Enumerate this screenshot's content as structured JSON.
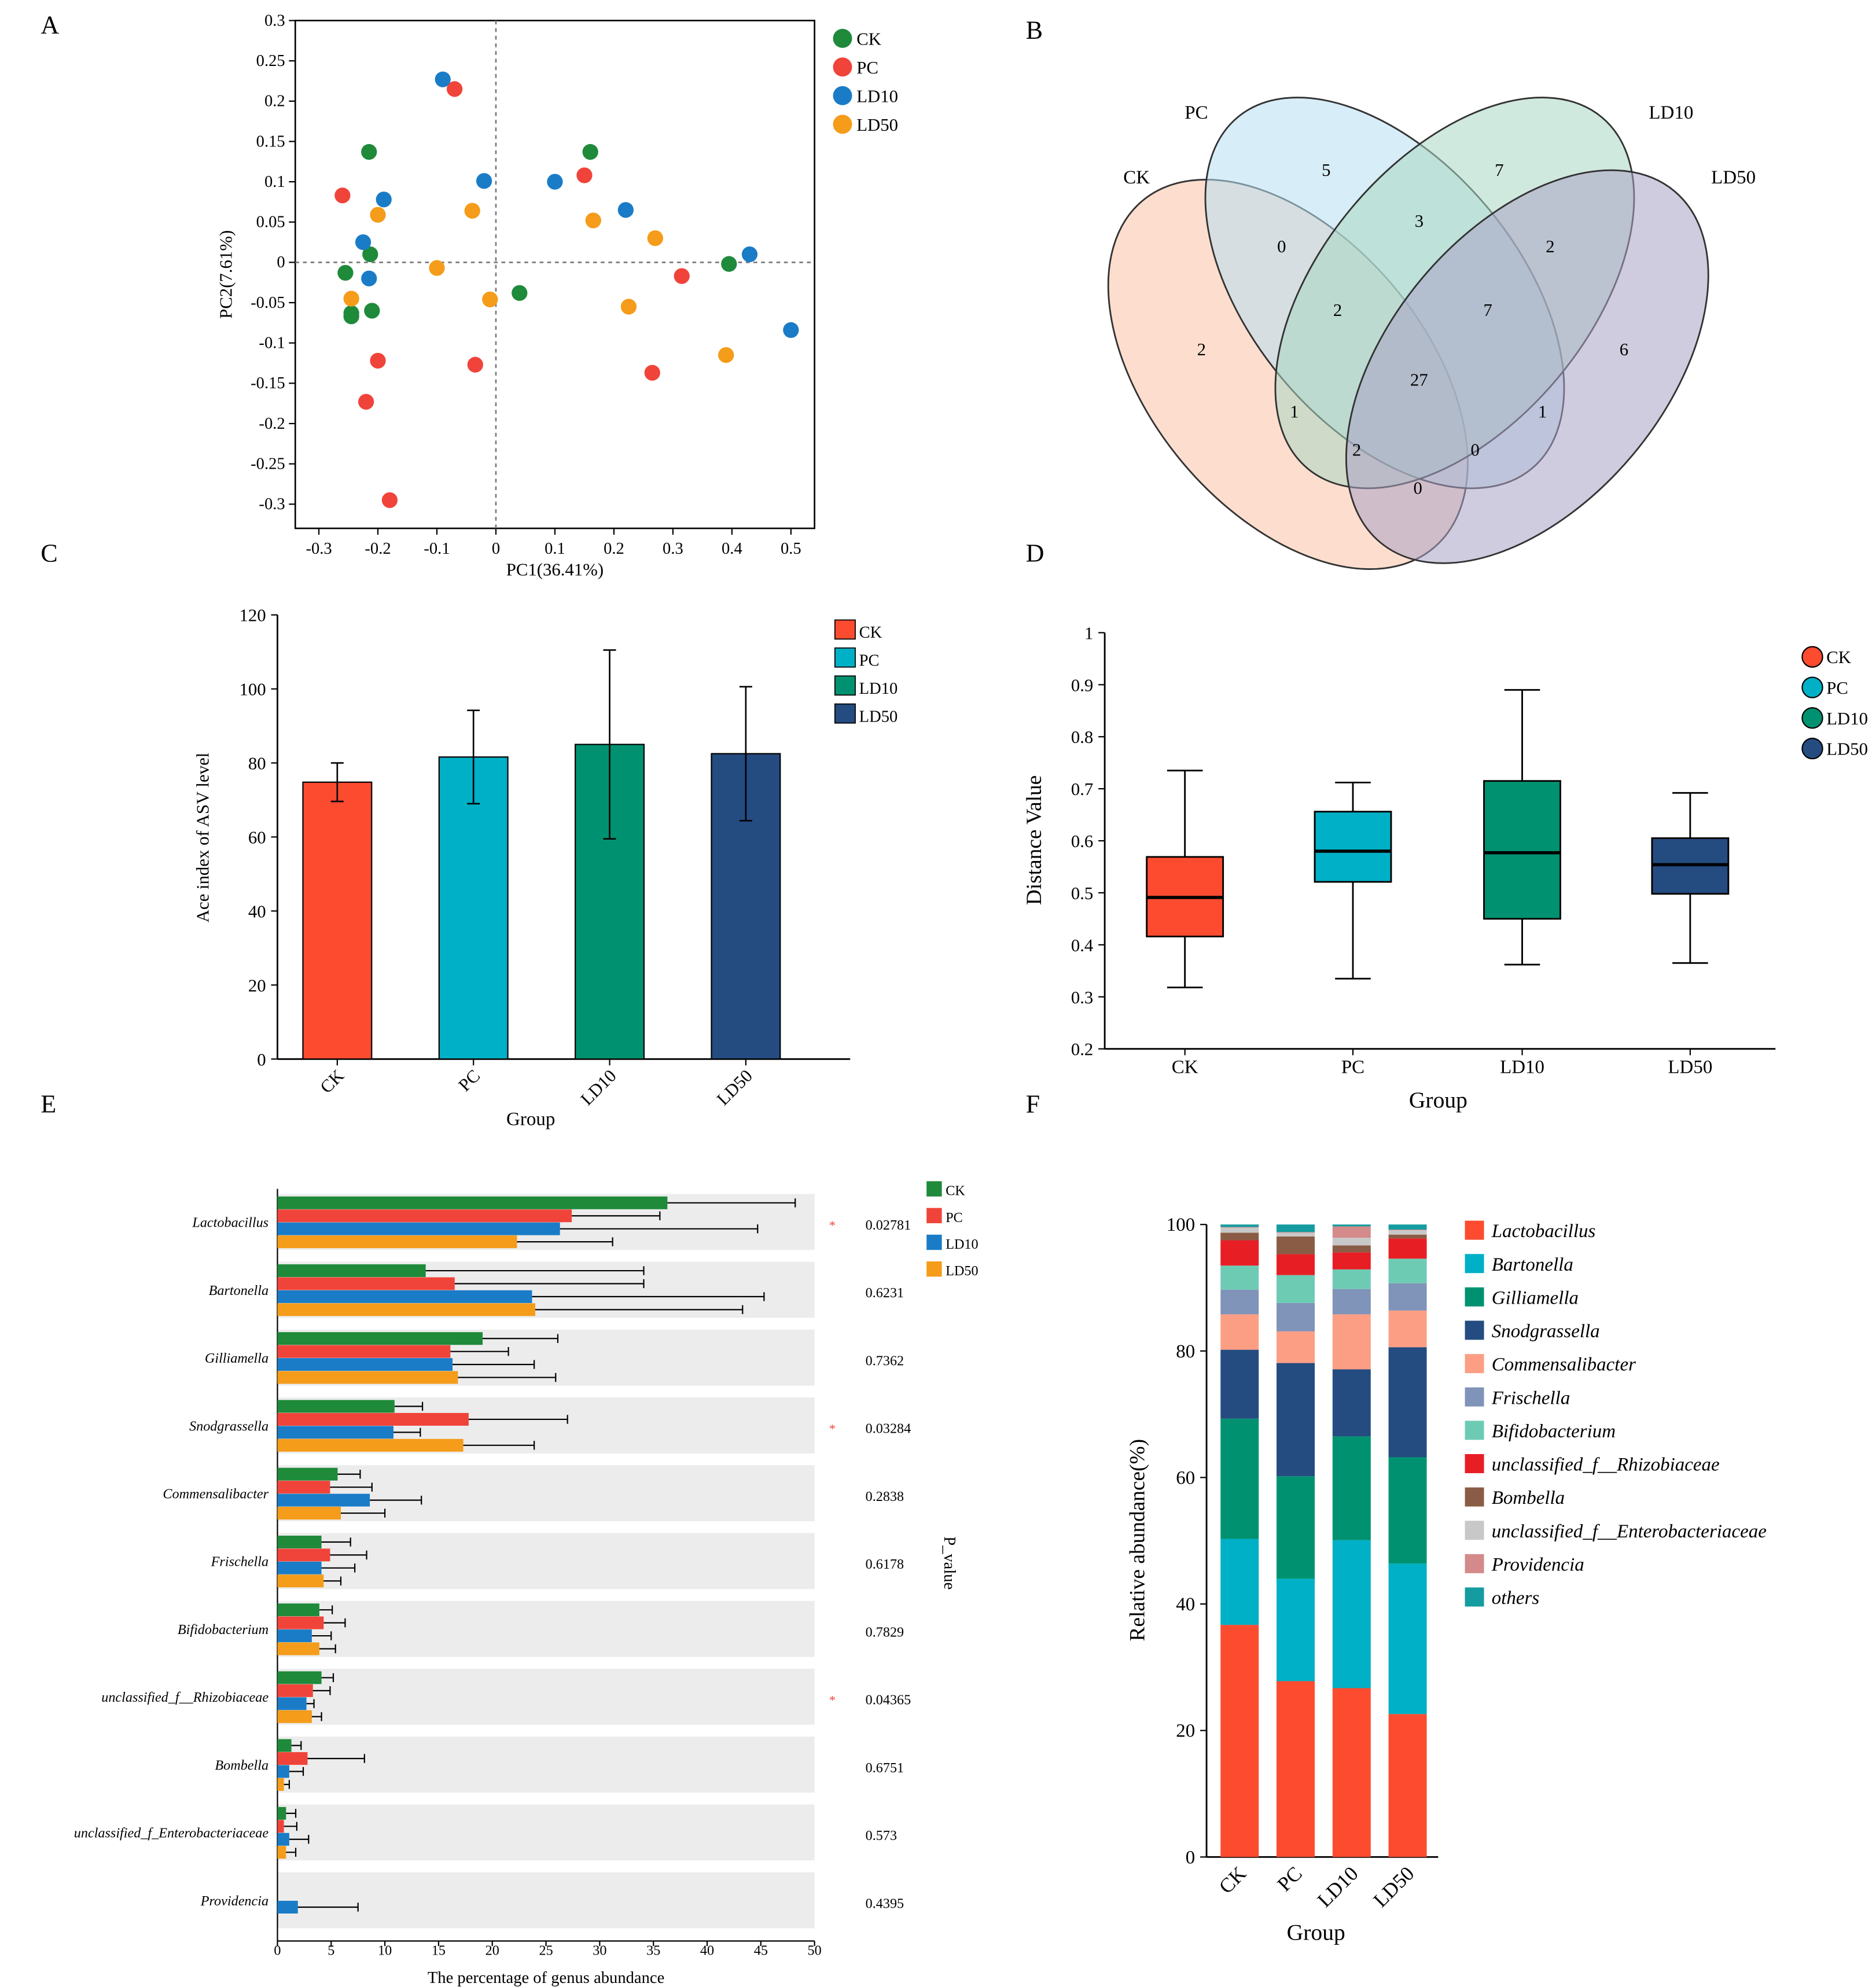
{
  "figure": {
    "panel_letters": [
      "A",
      "B",
      "C",
      "D",
      "E",
      "F"
    ]
  },
  "chart_data": [
    {
      "panel": "A",
      "type": "scatter",
      "title": "",
      "xlabel": "PC1(36.41%)",
      "ylabel": "PC2(7.61%)",
      "xlim": [
        -0.34,
        0.54
      ],
      "ylim": [
        -0.33,
        0.3
      ],
      "xticks": [
        -0.3,
        -0.2,
        -0.1,
        0,
        0.1,
        0.2,
        0.3,
        0.4,
        0.5
      ],
      "xtick_labels": [
        "-0.3",
        "-0.2",
        "-0.1",
        "0",
        "0.1",
        "0.2",
        "0.3",
        "0.4",
        "0.5"
      ],
      "yticks": [
        0.3,
        0.25,
        0.2,
        0.15,
        0.1,
        0.05,
        0,
        -0.05,
        -0.1,
        -0.15,
        -0.2,
        -0.25,
        -0.3
      ],
      "ytick_labels": [
        "0.3",
        "0.25",
        "0.2",
        "0.15",
        "0.1",
        "0.05",
        "0",
        "-0.05",
        "-0.1",
        "-0.15",
        "-0.2",
        "-0.25",
        "-0.3"
      ],
      "legend": [
        "CK",
        "PC",
        "LD10",
        "LD50"
      ],
      "legend_position": "right",
      "colors": [
        "#1e8a3a",
        "#f0443a",
        "#1a7cc7",
        "#f59c1a"
      ],
      "series": [
        {
          "name": "CK",
          "points": [
            [
              -0.215,
              0.137
            ],
            [
              -0.255,
              -0.013
            ],
            [
              -0.245,
              -0.063
            ],
            [
              -0.245,
              -0.067
            ],
            [
              -0.213,
              0.01
            ],
            [
              -0.21,
              -0.06
            ],
            [
              0.16,
              0.137
            ],
            [
              0.04,
              -0.038
            ],
            [
              0.395,
              -0.002
            ]
          ]
        },
        {
          "name": "PC",
          "points": [
            [
              -0.07,
              0.215
            ],
            [
              -0.26,
              0.083
            ],
            [
              -0.2,
              -0.122
            ],
            [
              -0.22,
              -0.173
            ],
            [
              -0.18,
              -0.295
            ],
            [
              -0.035,
              -0.127
            ],
            [
              0.15,
              0.108
            ],
            [
              0.315,
              -0.017
            ],
            [
              0.265,
              -0.137
            ]
          ]
        },
        {
          "name": "LD10",
          "points": [
            [
              -0.09,
              0.227
            ],
            [
              -0.02,
              0.101
            ],
            [
              -0.19,
              0.078
            ],
            [
              -0.225,
              0.025
            ],
            [
              -0.215,
              -0.02
            ],
            [
              0.1,
              0.1
            ],
            [
              0.22,
              0.065
            ],
            [
              0.43,
              0.01
            ],
            [
              0.5,
              -0.084
            ]
          ]
        },
        {
          "name": "LD50",
          "points": [
            [
              -0.2,
              0.059
            ],
            [
              -0.04,
              0.064
            ],
            [
              -0.1,
              -0.007
            ],
            [
              -0.245,
              -0.045
            ],
            [
              -0.01,
              -0.046
            ],
            [
              0.165,
              0.052
            ],
            [
              0.27,
              0.03
            ],
            [
              0.225,
              -0.055
            ],
            [
              0.39,
              -0.115
            ]
          ]
        }
      ]
    },
    {
      "panel": "B",
      "type": "venn",
      "sets": [
        "CK",
        "PC",
        "LD10",
        "LD50"
      ],
      "colors": [
        "#fbc2a6",
        "#b7dff0",
        "#a9d7c2",
        "#a9a3c4"
      ],
      "regions": [
        {
          "sets": [
            "PC"
          ],
          "value": "5"
        },
        {
          "sets": [
            "LD10"
          ],
          "value": "7"
        },
        {
          "sets": [
            "PC",
            "LD10"
          ],
          "value": "3"
        },
        {
          "sets": [
            "CK",
            "PC"
          ],
          "value": "0"
        },
        {
          "sets": [
            "LD10",
            "LD50"
          ],
          "value": "2"
        },
        {
          "sets": [
            "CK",
            "PC",
            "LD10"
          ],
          "value": "2"
        },
        {
          "sets": [
            "PC",
            "LD10",
            "LD50"
          ],
          "value": "7"
        },
        {
          "sets": [
            "CK"
          ],
          "value": "2"
        },
        {
          "sets": [
            "LD50"
          ],
          "value": "6"
        },
        {
          "sets": [
            "CK",
            "PC",
            "LD10",
            "LD50"
          ],
          "value": "27"
        },
        {
          "sets": [
            "CK",
            "LD10"
          ],
          "value": "1"
        },
        {
          "sets": [
            "PC",
            "LD50"
          ],
          "value": "1"
        },
        {
          "sets": [
            "CK",
            "LD10",
            "LD50"
          ],
          "value": "2"
        },
        {
          "sets": [
            "CK",
            "PC",
            "LD50"
          ],
          "value": "0"
        },
        {
          "sets": [
            "CK",
            "LD50"
          ],
          "value": "0"
        }
      ]
    },
    {
      "panel": "C",
      "type": "bar",
      "title": "",
      "xlabel": "Group",
      "ylabel": "Ace index of ASV level",
      "ylim": [
        0,
        120
      ],
      "yticks": [
        0,
        20,
        40,
        60,
        80,
        100,
        120
      ],
      "ytick_labels": [
        "0",
        "20",
        "40",
        "60",
        "80",
        "100",
        "120"
      ],
      "categories": [
        "CK",
        "PC",
        "LD10",
        "LD50"
      ],
      "values": [
        74.8,
        81.6,
        85.0,
        82.5
      ],
      "errors": [
        5.2,
        12.6,
        25.5,
        18.1
      ],
      "colors": [
        "#fd4b30",
        "#00b0c6",
        "#009270",
        "#244c80"
      ],
      "legend": [
        "CK",
        "PC",
        "LD10",
        "LD50"
      ],
      "legend_position": "top-right"
    },
    {
      "panel": "D",
      "type": "box",
      "title": "",
      "xlabel": "Group",
      "ylabel": "Distance Value",
      "ylim": [
        0.2,
        1
      ],
      "yticks": [
        0.2,
        0.3,
        0.4,
        0.5,
        0.6,
        0.7,
        0.8,
        0.9,
        1
      ],
      "ytick_labels": [
        "0.2",
        "0.3",
        "0.4",
        "0.5",
        "0.6",
        "0.7",
        "0.8",
        "0.9",
        "1"
      ],
      "categories": [
        "CK",
        "PC",
        "LD10",
        "LD50"
      ],
      "boxes": [
        {
          "min": 0.318,
          "q1": 0.416,
          "median": 0.491,
          "q3": 0.569,
          "max": 0.735
        },
        {
          "min": 0.335,
          "q1": 0.521,
          "median": 0.58,
          "q3": 0.656,
          "max": 0.712
        },
        {
          "min": 0.362,
          "q1": 0.45,
          "median": 0.577,
          "q3": 0.715,
          "max": 0.89
        },
        {
          "min": 0.365,
          "q1": 0.498,
          "median": 0.554,
          "q3": 0.605,
          "max": 0.692
        }
      ],
      "colors": [
        "#fd4b30",
        "#00b0c6",
        "#009270",
        "#244c80"
      ],
      "legend": [
        "CK",
        "PC",
        "LD10",
        "LD50"
      ],
      "legend_position": "top-right"
    },
    {
      "panel": "E",
      "type": "bar",
      "orientation": "horizontal",
      "title": "",
      "xlabel": "The percentage of genus abundance",
      "ylabel": "",
      "right_axis_label": "P_value",
      "xlim": [
        0,
        50
      ],
      "xticks": [
        0,
        5,
        10,
        15,
        20,
        25,
        30,
        35,
        40,
        45,
        50
      ],
      "xtick_labels": [
        "0",
        "5",
        "10",
        "15",
        "20",
        "25",
        "30",
        "35",
        "40",
        "45",
        "50"
      ],
      "categories": [
        "Lactobacillus",
        "Bartonella",
        "Gilliamella",
        "Snodgrassella",
        "Commensalibacter",
        "Frischella",
        "Bifidobacterium",
        "unclassified_f__Rhizobiaceae",
        "Bombella",
        "unclassified_f_Enterobacteriaceae",
        "Providencia"
      ],
      "p_values": [
        "0.02781",
        "0.6231",
        "0.7362",
        "0.03284",
        "0.2838",
        "0.6178",
        "0.7829",
        "0.04365",
        "0.6751",
        "0.573",
        "0.4395"
      ],
      "significance": [
        "*",
        "",
        "",
        "*",
        "",
        "",
        "",
        "*",
        "",
        "",
        ""
      ],
      "legend": [
        "CK",
        "PC",
        "LD10",
        "LD50"
      ],
      "legend_position": "top-right",
      "colors": [
        "#1e8a3a",
        "#f0443a",
        "#1a7cc7",
        "#f59c1a"
      ],
      "series": [
        {
          "name": "CK",
          "values": [
            36.3,
            13.8,
            19.1,
            10.9,
            5.6,
            4.1,
            3.9,
            4.1,
            1.3,
            0.8,
            0
          ],
          "errors": [
            11.9,
            20.3,
            7.0,
            2.6,
            2.1,
            2.7,
            1.2,
            1.1,
            0.9,
            0.9,
            0
          ]
        },
        {
          "name": "PC",
          "values": [
            27.4,
            16.5,
            16.1,
            17.8,
            4.9,
            4.9,
            4.3,
            3.3,
            2.8,
            0.6,
            0
          ],
          "errors": [
            8.2,
            17.6,
            5.4,
            9.2,
            3.9,
            3.4,
            2.0,
            1.6,
            5.3,
            1.2,
            0
          ]
        },
        {
          "name": "LD10",
          "values": [
            26.3,
            23.7,
            16.3,
            10.8,
            8.6,
            4.1,
            3.2,
            2.7,
            1.1,
            1.1,
            1.9
          ],
          "errors": [
            18.4,
            21.6,
            7.6,
            2.5,
            4.8,
            3.1,
            1.8,
            0.7,
            1.3,
            1.8,
            5.6
          ]
        },
        {
          "name": "LD50",
          "values": [
            22.3,
            24.0,
            16.8,
            17.3,
            5.9,
            4.3,
            3.9,
            3.2,
            0.6,
            0.8,
            0
          ],
          "errors": [
            8.9,
            19.3,
            9.1,
            6.6,
            4.1,
            1.6,
            1.5,
            0.9,
            0.5,
            0.9,
            0
          ]
        }
      ]
    },
    {
      "panel": "F",
      "type": "bar",
      "stacked": true,
      "title": "",
      "xlabel": "Group",
      "ylabel": "Relative abundance(%)",
      "ylim": [
        0,
        100
      ],
      "yticks": [
        0,
        20,
        40,
        60,
        80,
        100
      ],
      "ytick_labels": [
        "0",
        "20",
        "40",
        "60",
        "80",
        "100"
      ],
      "categories": [
        "CK",
        "PC",
        "LD10",
        "LD50"
      ],
      "legend_position": "right",
      "series": [
        {
          "name": "Lactobacillus",
          "color": "#fd4b30",
          "values": [
            36.7,
            27.8,
            26.7,
            22.6
          ]
        },
        {
          "name": "Bartonella",
          "color": "#00b0c6",
          "values": [
            13.6,
            16.2,
            23.4,
            23.8
          ]
        },
        {
          "name": "Gilliamella",
          "color": "#009270",
          "values": [
            19.0,
            16.2,
            16.4,
            16.8
          ]
        },
        {
          "name": "Snodgrassella",
          "color": "#244c80",
          "values": [
            10.9,
            17.9,
            10.6,
            17.4
          ]
        },
        {
          "name": "Commensalibacter",
          "color": "#fc9e84",
          "values": [
            5.6,
            5.0,
            8.7,
            5.8
          ]
        },
        {
          "name": "Frischella",
          "color": "#8093b8",
          "values": [
            3.9,
            4.5,
            4.0,
            4.3
          ]
        },
        {
          "name": "Bifidobacterium",
          "color": "#6dcbb4",
          "values": [
            3.8,
            4.4,
            3.1,
            3.9
          ]
        },
        {
          "name": "unclassified_f__Rhizobiaceae",
          "color": "#e81e25",
          "values": [
            4.0,
            3.3,
            2.7,
            3.2
          ]
        },
        {
          "name": "Bombella",
          "color": "#8a5c45",
          "values": [
            1.2,
            2.8,
            1.1,
            0.6
          ]
        },
        {
          "name": "unclassified_f__Enterobacteriaceae",
          "color": "#c8c8c8",
          "values": [
            0.8,
            0.6,
            1.2,
            0.7
          ]
        },
        {
          "name": "Providencia",
          "color": "#d48a8a",
          "values": [
            0.1,
            0.1,
            1.8,
            0.1
          ]
        },
        {
          "name": "others",
          "color": "#159ca0",
          "values": [
            0.4,
            1.2,
            0.3,
            0.8
          ]
        }
      ]
    }
  ]
}
